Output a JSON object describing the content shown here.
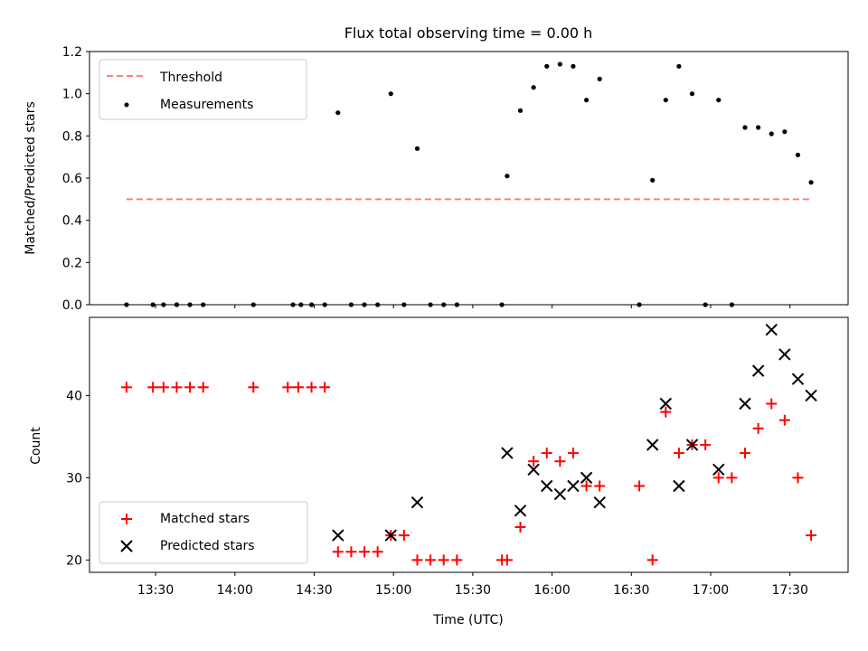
{
  "chart_data": [
    {
      "type": "scatter",
      "title": "Flux total observing time = 0.00 h",
      "xlabel": "",
      "ylabel": "Matched/Predicted stars",
      "ylim": [
        0,
        1.2
      ],
      "yticks": [
        "0.0",
        "0.2",
        "0.4",
        "0.6",
        "0.8",
        "1.0",
        "1.2"
      ],
      "legend_position": "upper-left",
      "threshold": {
        "name": "Threshold",
        "y": 0.5,
        "x_start": "13:19",
        "x_end": "17:38",
        "color": "#ff7f7f"
      },
      "series": [
        {
          "name": "Measurements",
          "color": "#000000",
          "points": [
            [
              "13:19",
              0.0
            ],
            [
              "13:29",
              0.0
            ],
            [
              "13:33",
              0.0
            ],
            [
              "13:38",
              0.0
            ],
            [
              "13:43",
              0.0
            ],
            [
              "13:48",
              0.0
            ],
            [
              "14:07",
              0.0
            ],
            [
              "14:22",
              0.0
            ],
            [
              "14:25",
              0.0
            ],
            [
              "14:29",
              0.0
            ],
            [
              "14:34",
              0.0
            ],
            [
              "14:39",
              0.91
            ],
            [
              "14:44",
              0.0
            ],
            [
              "14:49",
              0.0
            ],
            [
              "14:54",
              0.0
            ],
            [
              "14:59",
              1.0
            ],
            [
              "15:04",
              0.0
            ],
            [
              "15:09",
              0.74
            ],
            [
              "15:14",
              0.0
            ],
            [
              "15:19",
              0.0
            ],
            [
              "15:24",
              0.0
            ],
            [
              "15:41",
              0.0
            ],
            [
              "15:43",
              0.61
            ],
            [
              "15:48",
              0.92
            ],
            [
              "15:53",
              1.03
            ],
            [
              "15:58",
              1.13
            ],
            [
              "16:03",
              1.14
            ],
            [
              "16:08",
              1.13
            ],
            [
              "16:13",
              0.97
            ],
            [
              "16:18",
              1.07
            ],
            [
              "16:33",
              0.0
            ],
            [
              "16:38",
              0.59
            ],
            [
              "16:43",
              0.97
            ],
            [
              "16:48",
              1.13
            ],
            [
              "16:53",
              1.0
            ],
            [
              "16:58",
              0.0
            ],
            [
              "17:03",
              0.97
            ],
            [
              "17:08",
              0.0
            ],
            [
              "17:13",
              0.84
            ],
            [
              "17:18",
              0.84
            ],
            [
              "17:23",
              0.81
            ],
            [
              "17:28",
              0.82
            ],
            [
              "17:33",
              0.71
            ],
            [
              "17:38",
              0.58
            ]
          ]
        }
      ]
    },
    {
      "type": "scatter",
      "title": "",
      "xlabel": "Time (UTC)",
      "ylabel": "Count",
      "ylim": [
        18.5,
        49.5
      ],
      "yticks": [
        "20",
        "30",
        "40"
      ],
      "xlim": [
        "13:05",
        "17:52"
      ],
      "xticks": [
        "13:30",
        "14:00",
        "14:30",
        "15:00",
        "15:30",
        "16:00",
        "16:30",
        "17:00",
        "17:30"
      ],
      "legend_position": "lower-left",
      "series": [
        {
          "name": "Matched stars",
          "marker": "plus",
          "color": "#ff0000",
          "points": [
            [
              "13:19",
              41
            ],
            [
              "13:29",
              41
            ],
            [
              "13:33",
              41
            ],
            [
              "13:38",
              41
            ],
            [
              "13:43",
              41
            ],
            [
              "13:48",
              41
            ],
            [
              "14:07",
              41
            ],
            [
              "14:20",
              41
            ],
            [
              "14:24",
              41
            ],
            [
              "14:29",
              41
            ],
            [
              "14:34",
              41
            ],
            [
              "14:39",
              21
            ],
            [
              "14:44",
              21
            ],
            [
              "14:49",
              21
            ],
            [
              "14:54",
              21
            ],
            [
              "14:59",
              23
            ],
            [
              "15:04",
              23
            ],
            [
              "15:09",
              20
            ],
            [
              "15:14",
              20
            ],
            [
              "15:19",
              20
            ],
            [
              "15:24",
              20
            ],
            [
              "15:41",
              20
            ],
            [
              "15:43",
              20
            ],
            [
              "15:48",
              24
            ],
            [
              "15:53",
              32
            ],
            [
              "15:58",
              33
            ],
            [
              "16:03",
              32
            ],
            [
              "16:08",
              33
            ],
            [
              "16:13",
              29
            ],
            [
              "16:18",
              29
            ],
            [
              "16:33",
              29
            ],
            [
              "16:38",
              20
            ],
            [
              "16:43",
              38
            ],
            [
              "16:48",
              33
            ],
            [
              "16:53",
              34
            ],
            [
              "16:58",
              34
            ],
            [
              "17:03",
              30
            ],
            [
              "17:08",
              30
            ],
            [
              "17:13",
              33
            ],
            [
              "17:18",
              36
            ],
            [
              "17:23",
              39
            ],
            [
              "17:28",
              37
            ],
            [
              "17:33",
              30
            ],
            [
              "17:38",
              23
            ]
          ]
        },
        {
          "name": "Predicted stars",
          "marker": "x",
          "color": "#000000",
          "points": [
            [
              "14:39",
              23
            ],
            [
              "14:59",
              23
            ],
            [
              "15:09",
              27
            ],
            [
              "15:43",
              33
            ],
            [
              "15:48",
              26
            ],
            [
              "15:53",
              31
            ],
            [
              "15:58",
              29
            ],
            [
              "16:03",
              28
            ],
            [
              "16:08",
              29
            ],
            [
              "16:13",
              30
            ],
            [
              "16:18",
              27
            ],
            [
              "16:38",
              34
            ],
            [
              "16:43",
              39
            ],
            [
              "16:48",
              29
            ],
            [
              "16:53",
              34
            ],
            [
              "17:03",
              31
            ],
            [
              "17:13",
              39
            ],
            [
              "17:18",
              43
            ],
            [
              "17:23",
              48
            ],
            [
              "17:28",
              45
            ],
            [
              "17:33",
              42
            ],
            [
              "17:38",
              40
            ]
          ]
        }
      ]
    }
  ]
}
